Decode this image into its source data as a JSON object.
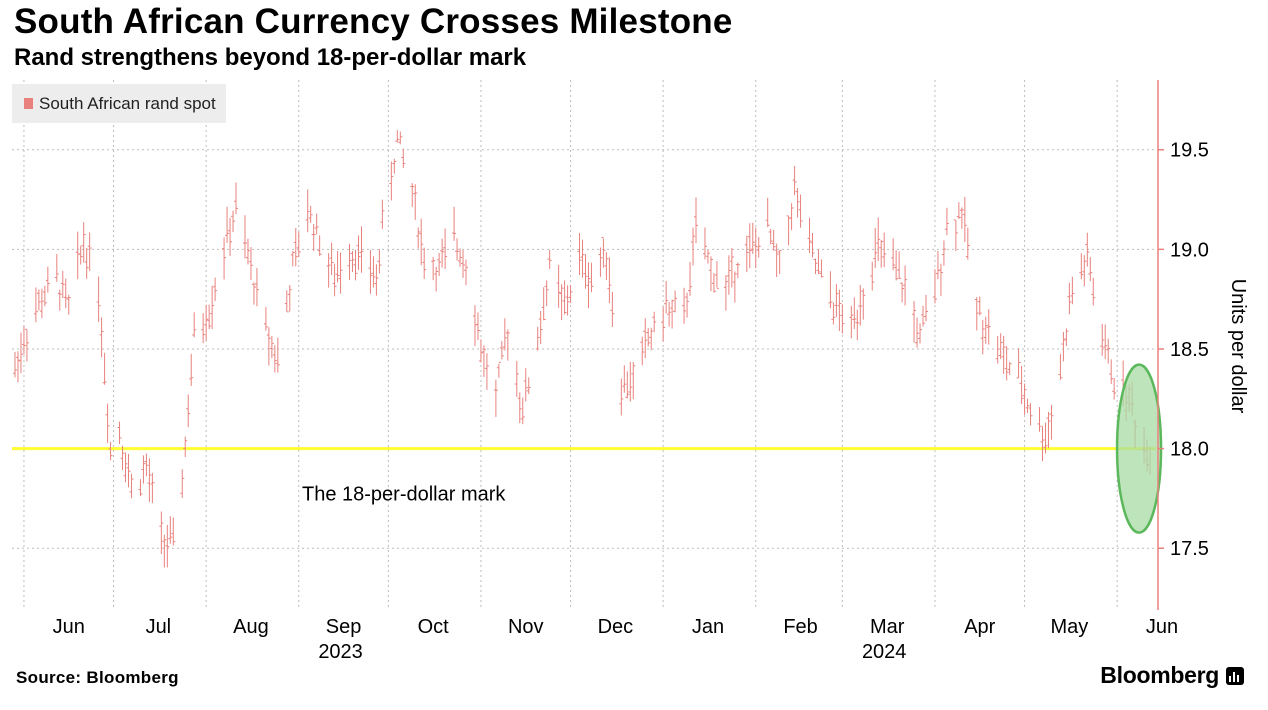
{
  "title": "South African Currency Crosses Milestone",
  "subtitle": "Rand strengthens beyond 18-per-dollar mark",
  "source": "Source: Bloomberg",
  "brand": "Bloomberg",
  "colors": {
    "series": "#e8817c",
    "threshold": "#ffff33",
    "highlight_fill": "#a8dba6",
    "highlight_stroke": "#5cb85c",
    "grid": "#bdbdbd",
    "axis": "#e8817c"
  },
  "chart_data": {
    "type": "line",
    "title": "South African Currency Crosses Milestone",
    "subtitle": "Rand strengthens beyond 18-per-dollar mark",
    "ylabel": "Units per dollar",
    "xlabel": "",
    "ylim": [
      17.2,
      19.85
    ],
    "yticks": [
      17.5,
      18.0,
      18.5,
      19.0,
      19.5
    ],
    "ytick_labels": [
      "17.5",
      "18.0",
      "18.5",
      "19.0",
      "19.5"
    ],
    "x_range": [
      "2023-05-28",
      "2024-06-14"
    ],
    "xticks": [
      {
        "label": "Jun",
        "date": "2023-06-01"
      },
      {
        "label": "Jul",
        "date": "2023-07-01"
      },
      {
        "label": "Aug",
        "date": "2023-08-01"
      },
      {
        "label": "Sep",
        "date": "2023-09-01"
      },
      {
        "label": "Oct",
        "date": "2023-10-01"
      },
      {
        "label": "Nov",
        "date": "2023-11-01"
      },
      {
        "label": "Dec",
        "date": "2023-12-01"
      },
      {
        "label": "Jan",
        "date": "2024-01-01"
      },
      {
        "label": "Feb",
        "date": "2024-02-01"
      },
      {
        "label": "Mar",
        "date": "2024-03-01"
      },
      {
        "label": "Apr",
        "date": "2024-04-01"
      },
      {
        "label": "May",
        "date": "2024-05-01"
      },
      {
        "label": "Jun",
        "date": "2024-06-01"
      }
    ],
    "year_labels": [
      {
        "label": "2023",
        "date": "2023-09-15"
      },
      {
        "label": "2024",
        "date": "2024-03-15"
      }
    ],
    "grid": true,
    "legend": {
      "position": "top-left"
    },
    "series": [
      {
        "name": "South African rand spot",
        "x": [
          "2023-05-29",
          "2023-06-02",
          "2023-06-07",
          "2023-06-12",
          "2023-06-16",
          "2023-06-21",
          "2023-06-26",
          "2023-06-30",
          "2023-07-03",
          "2023-07-07",
          "2023-07-12",
          "2023-07-17",
          "2023-07-21",
          "2023-07-24",
          "2023-07-28",
          "2023-08-02",
          "2023-08-07",
          "2023-08-11",
          "2023-08-16",
          "2023-08-21",
          "2023-08-25",
          "2023-08-30",
          "2023-09-04",
          "2023-09-08",
          "2023-09-13",
          "2023-09-18",
          "2023-09-22",
          "2023-09-27",
          "2023-09-29",
          "2023-10-04",
          "2023-10-09",
          "2023-10-13",
          "2023-10-18",
          "2023-10-23",
          "2023-10-27",
          "2023-11-01",
          "2023-11-06",
          "2023-11-10",
          "2023-11-15",
          "2023-11-20",
          "2023-11-24",
          "2023-11-29",
          "2023-12-04",
          "2023-12-08",
          "2023-12-13",
          "2023-12-18",
          "2023-12-22",
          "2023-12-27",
          "2024-01-02",
          "2024-01-08",
          "2024-01-12",
          "2024-01-17",
          "2024-01-22",
          "2024-01-26",
          "2024-01-31",
          "2024-02-05",
          "2024-02-09",
          "2024-02-14",
          "2024-02-19",
          "2024-02-23",
          "2024-02-28",
          "2024-03-04",
          "2024-03-08",
          "2024-03-13",
          "2024-03-18",
          "2024-03-22",
          "2024-03-27",
          "2024-04-01",
          "2024-04-05",
          "2024-04-10",
          "2024-04-15",
          "2024-04-19",
          "2024-04-24",
          "2024-04-29",
          "2024-05-03",
          "2024-05-08",
          "2024-05-13",
          "2024-05-17",
          "2024-05-22",
          "2024-05-27",
          "2024-05-31",
          "2024-06-05",
          "2024-06-10",
          "2024-06-12"
        ],
        "values": [
          18.4,
          18.6,
          18.75,
          18.85,
          18.7,
          19.05,
          18.8,
          18.0,
          18.1,
          17.8,
          17.9,
          17.55,
          17.5,
          17.85,
          18.55,
          18.7,
          19.0,
          19.2,
          18.9,
          18.6,
          18.45,
          18.9,
          19.2,
          19.05,
          18.85,
          19.0,
          18.95,
          18.85,
          19.1,
          19.55,
          19.3,
          18.95,
          18.9,
          19.05,
          18.95,
          18.5,
          18.25,
          18.6,
          18.2,
          18.55,
          18.9,
          18.7,
          18.95,
          18.85,
          19.0,
          18.3,
          18.35,
          18.55,
          18.7,
          18.65,
          19.1,
          18.9,
          18.8,
          18.95,
          19.0,
          19.1,
          18.9,
          19.3,
          19.0,
          18.85,
          18.7,
          18.6,
          18.8,
          19.0,
          18.9,
          18.8,
          18.55,
          18.8,
          19.1,
          19.2,
          18.7,
          18.6,
          18.45,
          18.35,
          18.2,
          18.05,
          18.4,
          18.8,
          18.95,
          18.55,
          18.35,
          18.25,
          18.0,
          17.95
        ]
      }
    ],
    "threshold_line": {
      "y": 18.0,
      "label": "The 18-per-dollar mark"
    },
    "highlight": {
      "x": "2024-06-10",
      "y": 18.0
    }
  }
}
